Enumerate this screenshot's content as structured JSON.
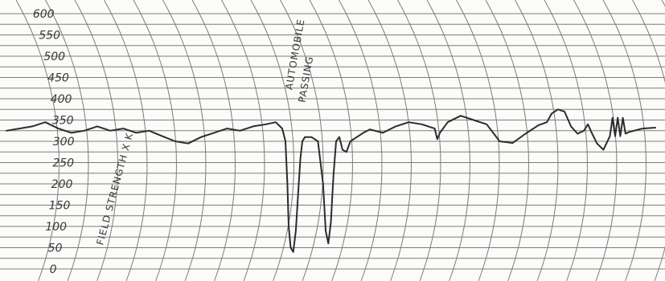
{
  "chart_data": {
    "type": "line",
    "title": "",
    "xlabel": "",
    "ylabel": "FIELD STRENGTH X K",
    "ylim": [
      0,
      600
    ],
    "yticks": [
      0,
      50,
      100,
      150,
      200,
      250,
      300,
      350,
      400,
      450,
      500,
      550,
      600
    ],
    "ytick_labels": [
      "0",
      "50",
      "100",
      "150",
      "200",
      "250",
      "300",
      "350",
      "400",
      "450",
      "500",
      "550",
      "600"
    ],
    "grid": true,
    "xlim": [
      0,
      100
    ],
    "annotations": [
      {
        "text": "AUTOMOBILE",
        "x": 44,
        "y": 420
      },
      {
        "text": "PASSING",
        "x": 46,
        "y": 390
      }
    ],
    "series": [
      {
        "values": [
          [
            0,
            325
          ],
          [
            2,
            330
          ],
          [
            4,
            335
          ],
          [
            6,
            345
          ],
          [
            8,
            330
          ],
          [
            10,
            320
          ],
          [
            12,
            325
          ],
          [
            14,
            335
          ],
          [
            16,
            325
          ],
          [
            18,
            330
          ],
          [
            20,
            320
          ],
          [
            22,
            325
          ],
          [
            24,
            312
          ],
          [
            26,
            300
          ],
          [
            28,
            295
          ],
          [
            30,
            310
          ],
          [
            32,
            320
          ],
          [
            34,
            330
          ],
          [
            36,
            325
          ],
          [
            38,
            335
          ],
          [
            40,
            340
          ],
          [
            41.5,
            345
          ],
          [
            42.5,
            330
          ],
          [
            43,
            300
          ],
          [
            43.3,
            200
          ],
          [
            43.5,
            100
          ],
          [
            43.8,
            50
          ],
          [
            44.2,
            40
          ],
          [
            44.6,
            90
          ],
          [
            45.0,
            190
          ],
          [
            45.3,
            260
          ],
          [
            45.6,
            300
          ],
          [
            46,
            310
          ],
          [
            47,
            310
          ],
          [
            48,
            300
          ],
          [
            48.8,
            200
          ],
          [
            49.2,
            90
          ],
          [
            49.6,
            60
          ],
          [
            50,
            110
          ],
          [
            50.4,
            220
          ],
          [
            50.8,
            300
          ],
          [
            51.3,
            310
          ],
          [
            51.8,
            280
          ],
          [
            52.4,
            275
          ],
          [
            53,
            300
          ],
          [
            54,
            310
          ],
          [
            55,
            320
          ],
          [
            56,
            328
          ],
          [
            58,
            320
          ],
          [
            60,
            335
          ],
          [
            62,
            345
          ],
          [
            64,
            340
          ],
          [
            66,
            330
          ],
          [
            66.4,
            305
          ],
          [
            66.8,
            320
          ],
          [
            68,
            345
          ],
          [
            70,
            360
          ],
          [
            72,
            350
          ],
          [
            74,
            340
          ],
          [
            75,
            320
          ],
          [
            76,
            300
          ],
          [
            78,
            296
          ],
          [
            80,
            318
          ],
          [
            82,
            338
          ],
          [
            83.3,
            345
          ],
          [
            84,
            365
          ],
          [
            85,
            375
          ],
          [
            86,
            370
          ],
          [
            87,
            335
          ],
          [
            88,
            318
          ],
          [
            89,
            325
          ],
          [
            89.6,
            340
          ],
          [
            90.2,
            320
          ],
          [
            91,
            295
          ],
          [
            92,
            280
          ],
          [
            93,
            312
          ],
          [
            93.4,
            355
          ],
          [
            93.8,
            312
          ],
          [
            94.2,
            355
          ],
          [
            94.6,
            312
          ],
          [
            95,
            355
          ],
          [
            95.4,
            318
          ],
          [
            96,
            322
          ],
          [
            98,
            330
          ],
          [
            100,
            332
          ]
        ]
      }
    ]
  }
}
